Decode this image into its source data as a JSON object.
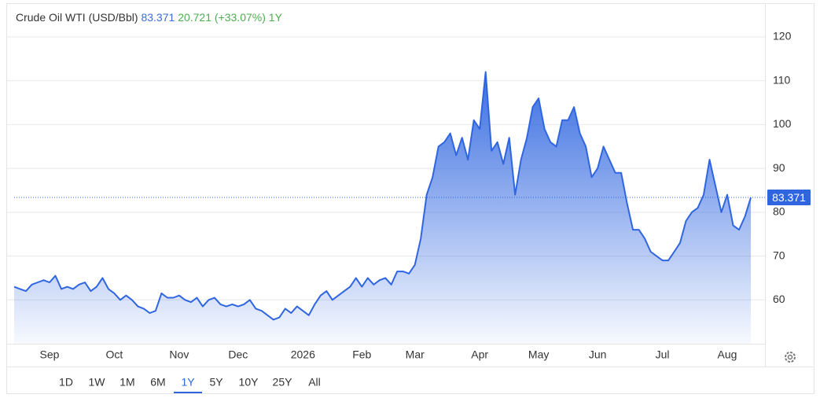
{
  "chart_data": {
    "type": "area",
    "header": {
      "name": "Crude Oil WTI (USD/Bbl)",
      "price": 83.371,
      "change": 20.721,
      "change_percent": "(+33.07%)",
      "period": "1Y"
    },
    "current_value": 83.371,
    "categories": [
      null,
      null,
      null,
      null,
      null,
      null,
      "Sep",
      null,
      null,
      null,
      null,
      null,
      null,
      null,
      null,
      null,
      null,
      "Oct",
      null,
      null,
      null,
      null,
      null,
      null,
      null,
      null,
      null,
      null,
      "Nov",
      null,
      null,
      null,
      null,
      null,
      null,
      null,
      null,
      null,
      "Dec",
      null,
      null,
      null,
      null,
      null,
      null,
      null,
      null,
      null,
      null,
      "2026",
      null,
      null,
      null,
      null,
      null,
      null,
      null,
      null,
      null,
      "Feb",
      null,
      null,
      null,
      null,
      null,
      null,
      null,
      null,
      "Mar",
      null,
      null,
      null,
      null,
      null,
      null,
      null,
      null,
      null,
      null,
      "Apr",
      null,
      null,
      null,
      null,
      null,
      null,
      null,
      null,
      null,
      "May",
      null,
      null,
      null,
      null,
      null,
      null,
      null,
      null,
      null,
      "Jun",
      null,
      null,
      null,
      null,
      null,
      null,
      null,
      null,
      null,
      null,
      "Jul",
      null,
      null,
      null,
      null,
      null,
      null,
      null,
      null,
      null,
      null,
      "Aug",
      null,
      null,
      null,
      null
    ],
    "values": [
      63,
      62.5,
      62,
      63.5,
      64,
      64.5,
      64,
      65.5,
      62.5,
      63,
      62.5,
      63.5,
      64,
      62,
      63,
      65,
      62.5,
      61.5,
      60,
      61,
      60,
      58.5,
      58,
      57,
      57.5,
      61.5,
      60.5,
      60.5,
      61,
      60,
      59.5,
      60.5,
      58.5,
      60,
      60.5,
      59,
      58.5,
      59,
      58.5,
      59,
      60,
      58,
      57.5,
      56.5,
      55.5,
      56,
      58,
      57,
      58.5,
      57.5,
      56.5,
      59,
      61,
      62,
      60,
      61,
      62,
      63,
      65,
      63,
      65,
      63.5,
      64.5,
      65,
      63.5,
      66.5,
      66.5,
      66,
      68,
      74,
      84,
      88,
      95,
      96,
      98,
      93,
      97,
      92,
      101,
      99,
      112,
      94,
      96,
      91,
      97,
      84,
      92,
      97,
      104,
      106,
      99,
      96,
      95,
      101,
      101,
      104,
      98,
      95,
      88,
      90,
      95,
      92,
      89,
      89,
      82,
      76,
      76,
      74,
      71,
      70,
      69,
      69,
      71,
      73,
      78,
      80,
      81,
      84,
      92,
      86,
      80,
      84,
      77,
      76,
      79,
      83.371
    ],
    "color": "#2f66e0",
    "ylim": [
      50,
      125
    ],
    "yticks": [
      60,
      70,
      80,
      90,
      100,
      110,
      120
    ],
    "grid": true,
    "range_options": [
      "1D",
      "1W",
      "1M",
      "6M",
      "1Y",
      "5Y",
      "10Y",
      "25Y",
      "All"
    ],
    "active_range": "1Y"
  }
}
